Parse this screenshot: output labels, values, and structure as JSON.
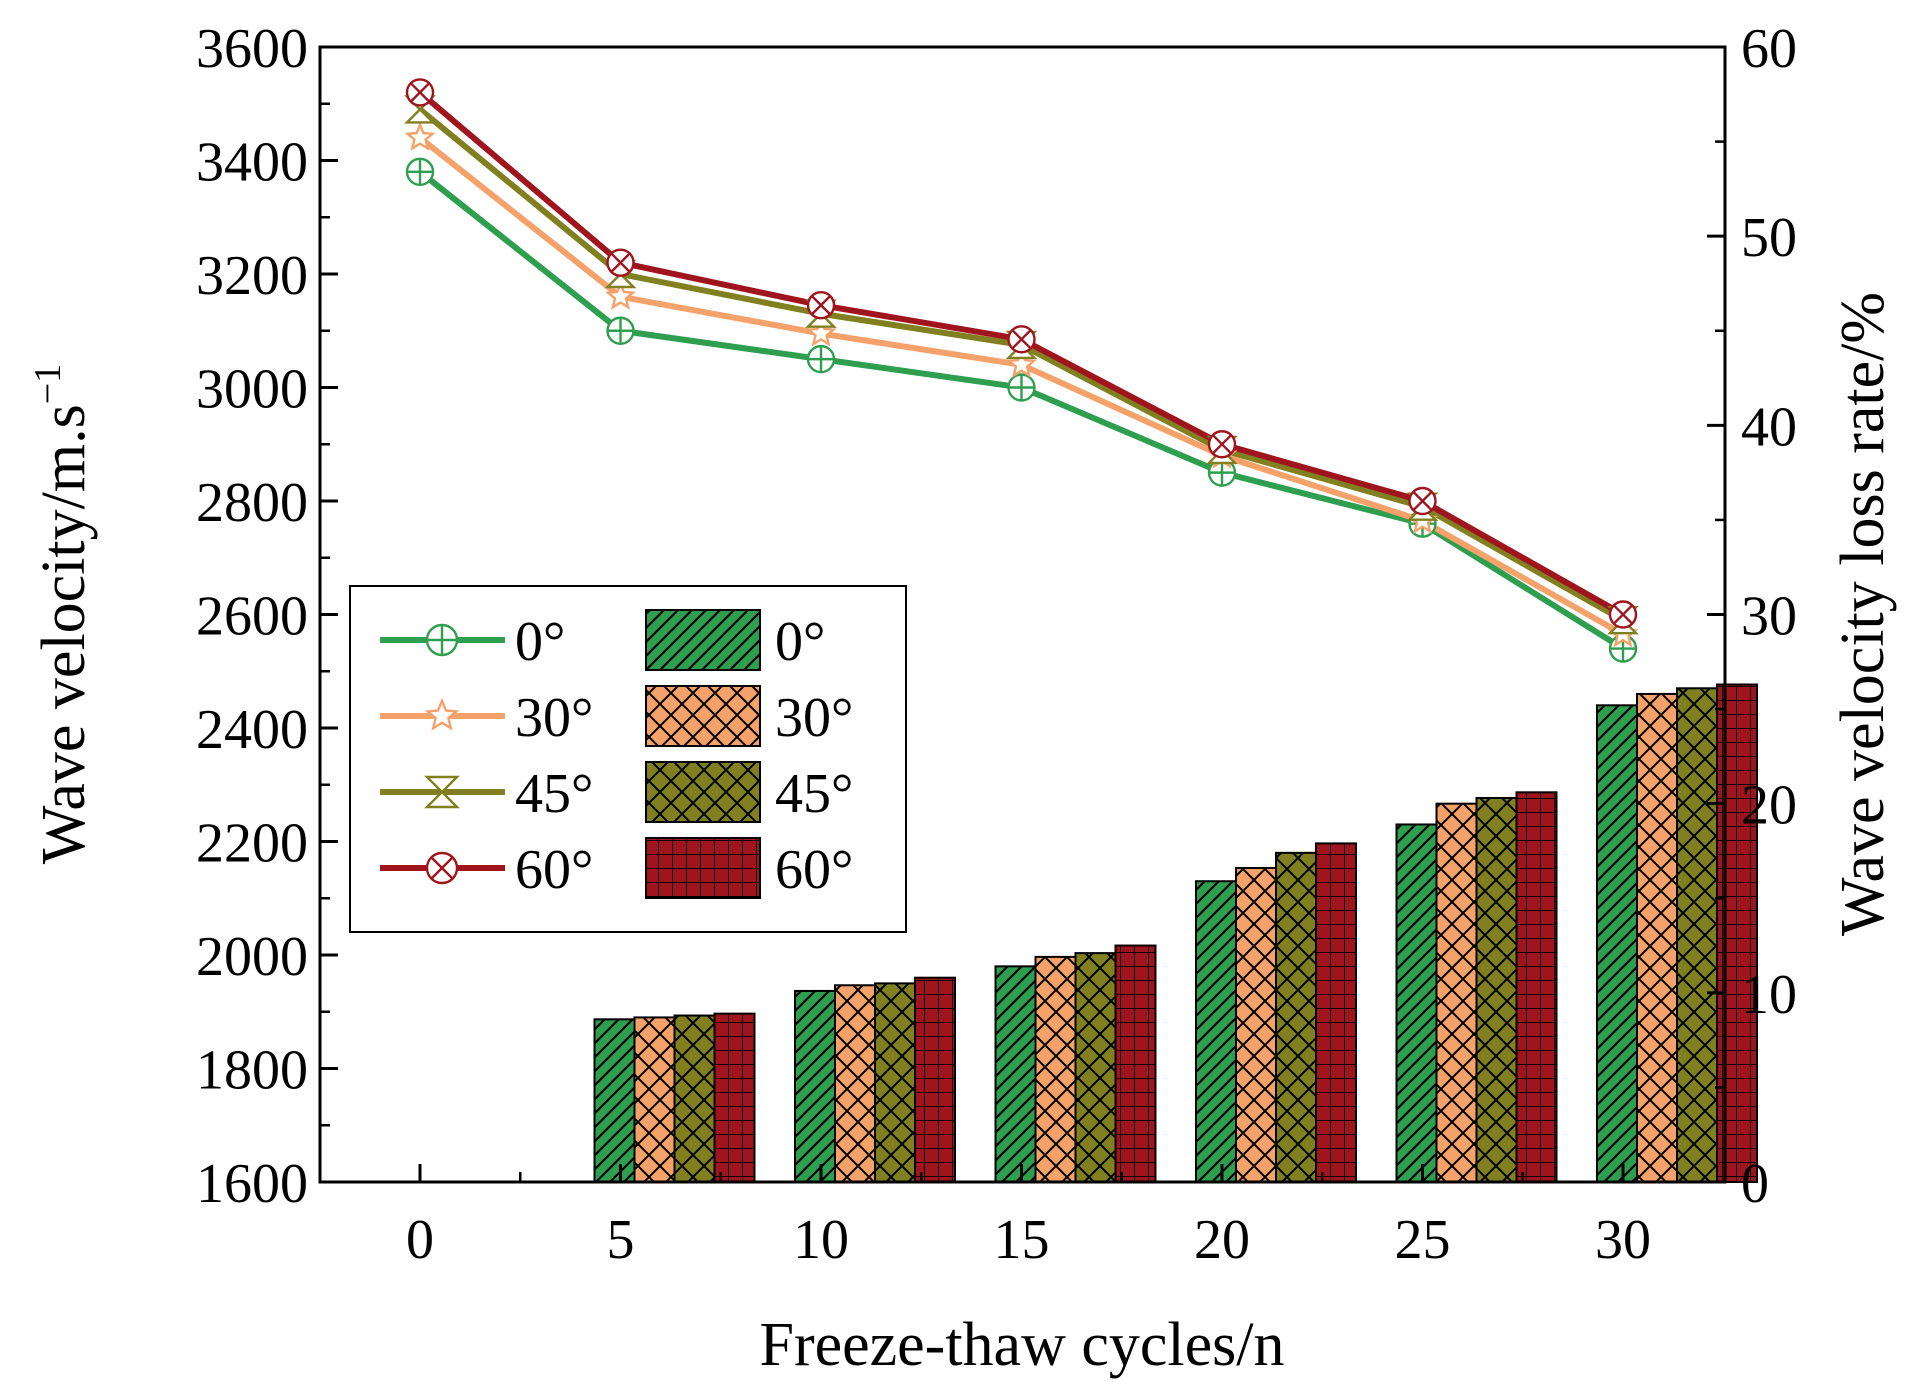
{
  "chart_data": {
    "type": "bar",
    "x_label": "Freeze-thaw cycles/n",
    "y_label_left": "Wave velocity/m.s",
    "y_label_left_sup": "−1",
    "y_label_right": "Wave velocity loss rate/%",
    "categories": [
      "0",
      "5",
      "10",
      "15",
      "20",
      "25",
      "30"
    ],
    "y_left_range": [
      1600,
      3600
    ],
    "y_left_ticks": [
      "1600",
      "1800",
      "2000",
      "2200",
      "2400",
      "2600",
      "2800",
      "3000",
      "3200",
      "3400",
      "3600"
    ],
    "y_right_range": [
      0,
      60
    ],
    "y_right_ticks": [
      "0",
      "10",
      "20",
      "30",
      "40",
      "50",
      "60"
    ],
    "line_series": [
      {
        "name": "0°",
        "color": "#2e9e4f",
        "marker": "circle-plus",
        "values": [
          3380,
          3100,
          3050,
          3000,
          2850,
          2760,
          2540
        ]
      },
      {
        "name": "30°",
        "color": "#f5a26a",
        "marker": "star",
        "values": [
          3440,
          3160,
          3095,
          3040,
          2880,
          2765,
          2565
        ]
      },
      {
        "name": "45°",
        "color": "#808020",
        "marker": "hourglass",
        "values": [
          3490,
          3200,
          3130,
          3075,
          2890,
          2790,
          2590
        ]
      },
      {
        "name": "60°",
        "color": "#a0141e",
        "marker": "circle-x",
        "values": [
          3520,
          3220,
          3145,
          3085,
          2900,
          2800,
          2600
        ]
      }
    ],
    "bar_series": [
      {
        "name": "0°",
        "color": "#2e9e4f",
        "pattern": "diagonal",
        "values": [
          0,
          8.6,
          10.1,
          11.4,
          15.9,
          18.9,
          25.2
        ]
      },
      {
        "name": "30°",
        "color": "#f5a26a",
        "pattern": "crosshatch",
        "values": [
          0,
          8.7,
          10.4,
          11.9,
          16.6,
          20.0,
          25.8
        ]
      },
      {
        "name": "45°",
        "color": "#808020",
        "pattern": "crosshatch",
        "values": [
          0,
          8.8,
          10.5,
          12.1,
          17.4,
          20.3,
          26.1
        ]
      },
      {
        "name": "60°",
        "color": "#a0141e",
        "pattern": "grid",
        "values": [
          0,
          8.9,
          10.8,
          12.5,
          17.9,
          20.6,
          26.3
        ]
      }
    ]
  }
}
